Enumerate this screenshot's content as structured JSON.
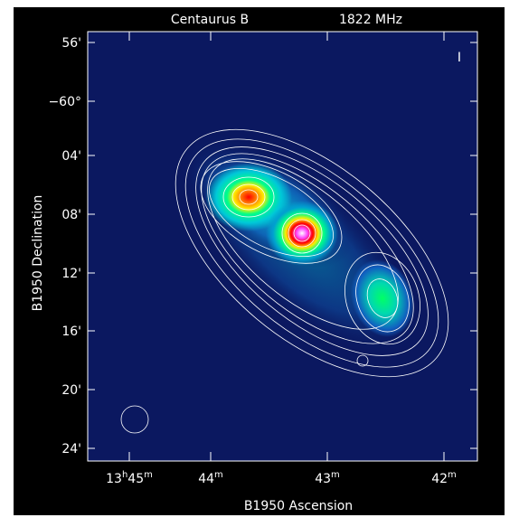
{
  "title": {
    "source": "Centaurus B",
    "frequency": "1822 MHz"
  },
  "stokes": "I",
  "y_axis": {
    "label": "B1950 Declination",
    "ticks": [
      "56'",
      "−60°",
      "04'",
      "08'",
      "12'",
      "16'",
      "20'",
      "24'"
    ]
  },
  "x_axis": {
    "label": "B1950 Ascension",
    "ticks": [
      [
        "13",
        "h",
        "45",
        "m"
      ],
      [
        "44",
        "m"
      ],
      [
        "43",
        "m"
      ],
      [
        "42",
        "m"
      ]
    ]
  }
}
